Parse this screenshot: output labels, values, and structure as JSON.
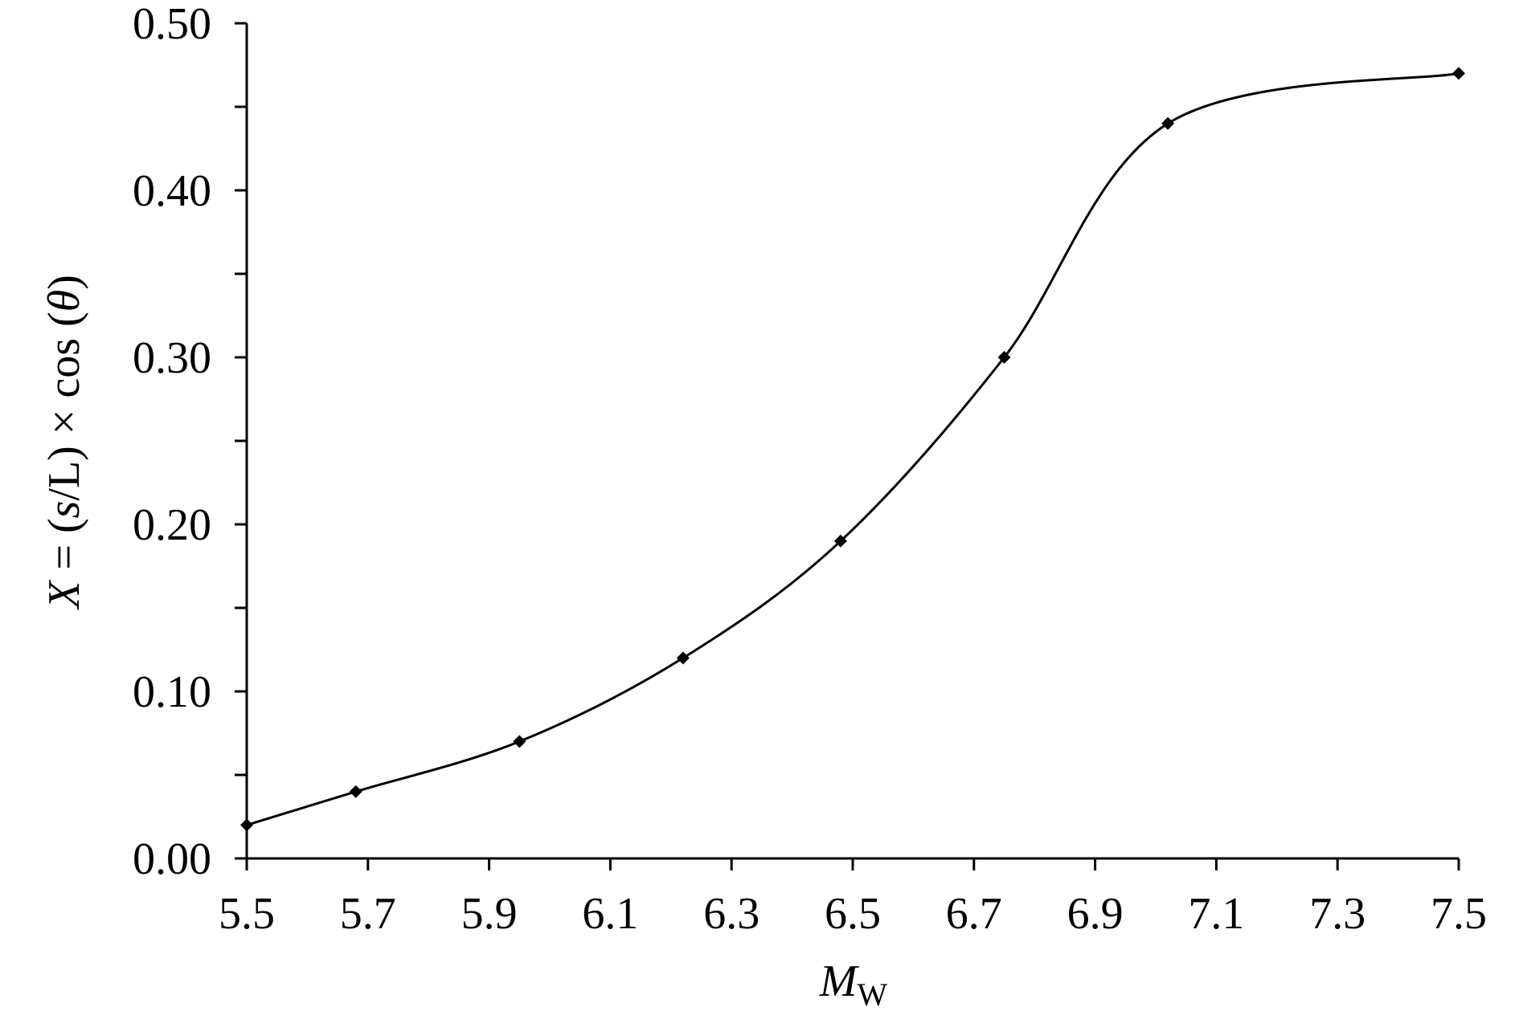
{
  "chart_data": {
    "type": "line",
    "xlabel": [
      "M",
      "W"
    ],
    "ylabel": [
      "X",
      " = (",
      "s",
      "/L) × cos (",
      "θ",
      ")"
    ],
    "x": [
      5.5,
      5.68,
      5.95,
      6.22,
      6.48,
      6.75,
      7.02,
      7.5
    ],
    "series": [
      {
        "color": "#000000",
        "values": [
          0.02,
          0.04,
          0.07,
          0.12,
          0.19,
          0.3,
          0.44,
          0.47
        ]
      }
    ],
    "smooth": true,
    "marker": "diamond",
    "xlim": [
      5.5,
      7.5
    ],
    "xticks": [
      5.5,
      5.7,
      5.9,
      6.1,
      6.3,
      6.5,
      6.7,
      6.9,
      7.1,
      7.3,
      7.5
    ],
    "ylim": [
      0,
      0.5
    ],
    "yticks": [
      {
        "value": 0,
        "label": "0.00"
      },
      {
        "value": 0.1,
        "label": "0.10"
      },
      {
        "value": 0.2,
        "label": "0.20"
      },
      {
        "value": 0.3,
        "label": "0.30"
      },
      {
        "value": 0.4,
        "label": "0.40"
      },
      {
        "value": 0.5,
        "label": "0.50"
      }
    ],
    "yminorticks": [
      0.05,
      0.15,
      0.25,
      0.35,
      0.45
    ],
    "grid": false
  }
}
